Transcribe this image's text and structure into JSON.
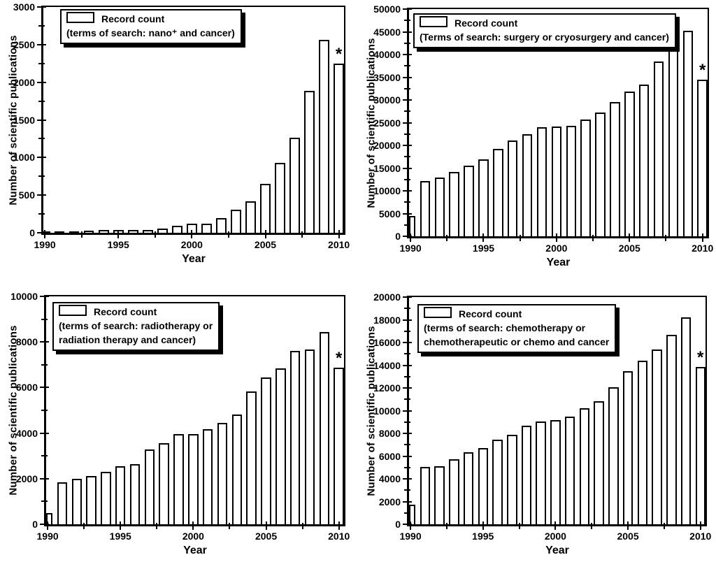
{
  "figure": {
    "background": "#ffffff",
    "bar_fill": "#ffffff",
    "bar_border": "#000000",
    "annotation_symbol": "*"
  },
  "chart_data": [
    {
      "type": "bar",
      "panel": "top-left",
      "legend_lines": [
        "Record count",
        "(terms of search: nano⁺ and cancer)"
      ],
      "legend_position": "top-left",
      "xlabel": "Year",
      "ylabel": "Number of scientific publications",
      "x": [
        1990,
        1991,
        1992,
        1993,
        1994,
        1995,
        1996,
        1997,
        1998,
        1999,
        2000,
        2001,
        2002,
        2003,
        2004,
        2005,
        2006,
        2007,
        2008,
        2009,
        2010
      ],
      "values": [
        5,
        15,
        18,
        25,
        33,
        40,
        40,
        42,
        60,
        90,
        117,
        122,
        200,
        307,
        416,
        648,
        933,
        1268,
        1888,
        2563,
        2244
      ],
      "ylim": [
        0,
        3000
      ],
      "ytick_step": 500,
      "yticks": [
        0,
        500,
        1000,
        1500,
        2000,
        2500,
        3000
      ],
      "xticks": [
        1990,
        1995,
        2000,
        2005,
        2010
      ],
      "grid": false,
      "annotation": {
        "text": "*",
        "x": 2010
      }
    },
    {
      "type": "bar",
      "panel": "top-right",
      "legend_lines": [
        "Record count",
        "(Terms of search: surgery or cryosurgery and cancer)"
      ],
      "legend_position": "top-left",
      "xlabel": "Year",
      "ylabel": "Number of scientific publications",
      "x": [
        1990,
        1991,
        1992,
        1993,
        1994,
        1995,
        1996,
        1997,
        1998,
        1999,
        2000,
        2001,
        2002,
        2003,
        2004,
        2005,
        2006,
        2007,
        2008,
        2009,
        2010
      ],
      "values": [
        4400,
        12100,
        13000,
        14200,
        15500,
        17000,
        19300,
        21100,
        22500,
        24000,
        24200,
        24300,
        25700,
        27200,
        29500,
        31900,
        33400,
        38400,
        42200,
        45300,
        34500
      ],
      "ylim": [
        0,
        50000
      ],
      "ytick_step": 5000,
      "yticks": [
        0,
        5000,
        10000,
        15000,
        20000,
        25000,
        30000,
        35000,
        40000,
        45000,
        50000
      ],
      "xticks": [
        1990,
        1995,
        2000,
        2005,
        2010
      ],
      "grid": false,
      "annotation": {
        "text": "*",
        "x": 2010
      }
    },
    {
      "type": "bar",
      "panel": "bottom-left",
      "legend_lines": [
        "Record count",
        "(terms of search: radiotherapy or",
        "radiation therapy and cancer)"
      ],
      "legend_position": "top-left",
      "xlabel": "Year",
      "ylabel": "Number of scientific publications",
      "x": [
        1990,
        1991,
        1992,
        1993,
        1994,
        1995,
        1996,
        1997,
        1998,
        1999,
        2000,
        2001,
        2002,
        2003,
        2004,
        2005,
        2006,
        2007,
        2008,
        2009,
        2010
      ],
      "values": [
        500,
        1850,
        2000,
        2120,
        2310,
        2550,
        2650,
        3280,
        3560,
        3970,
        3950,
        4170,
        4450,
        4820,
        5840,
        6440,
        6850,
        7620,
        7660,
        8450,
        6860
      ],
      "ylim": [
        0,
        10000
      ],
      "ytick_step": 2000,
      "yticks": [
        0,
        2000,
        4000,
        6000,
        8000,
        10000
      ],
      "xticks": [
        1990,
        1995,
        2000,
        2005,
        2010
      ],
      "grid": false,
      "annotation": {
        "text": "*",
        "x": 2010
      }
    },
    {
      "type": "bar",
      "panel": "bottom-right",
      "legend_lines": [
        "Record count",
        "(terms of search: chemotherapy or",
        "chemotherapeutic or chemo and cancer"
      ],
      "legend_position": "top-left",
      "xlabel": "Year",
      "ylabel": "Number of scientific publications",
      "x": [
        1990,
        1991,
        1992,
        1993,
        1994,
        1995,
        1996,
        1997,
        1998,
        1999,
        2000,
        2001,
        2002,
        2003,
        2004,
        2005,
        2006,
        2007,
        2008,
        2009,
        2010
      ],
      "values": [
        1700,
        5050,
        5100,
        5700,
        6350,
        6700,
        7450,
        7900,
        8700,
        9050,
        9200,
        9500,
        10200,
        10850,
        12050,
        13500,
        14400,
        15400,
        16700,
        18200,
        13850
      ],
      "ylim": [
        0,
        20000
      ],
      "ytick_step": 2000,
      "yticks": [
        0,
        2000,
        4000,
        6000,
        8000,
        10000,
        12000,
        14000,
        16000,
        18000,
        20000
      ],
      "xticks": [
        1990,
        1995,
        2000,
        2005,
        2010
      ],
      "grid": false,
      "annotation": {
        "text": "*",
        "x": 2010
      }
    }
  ]
}
